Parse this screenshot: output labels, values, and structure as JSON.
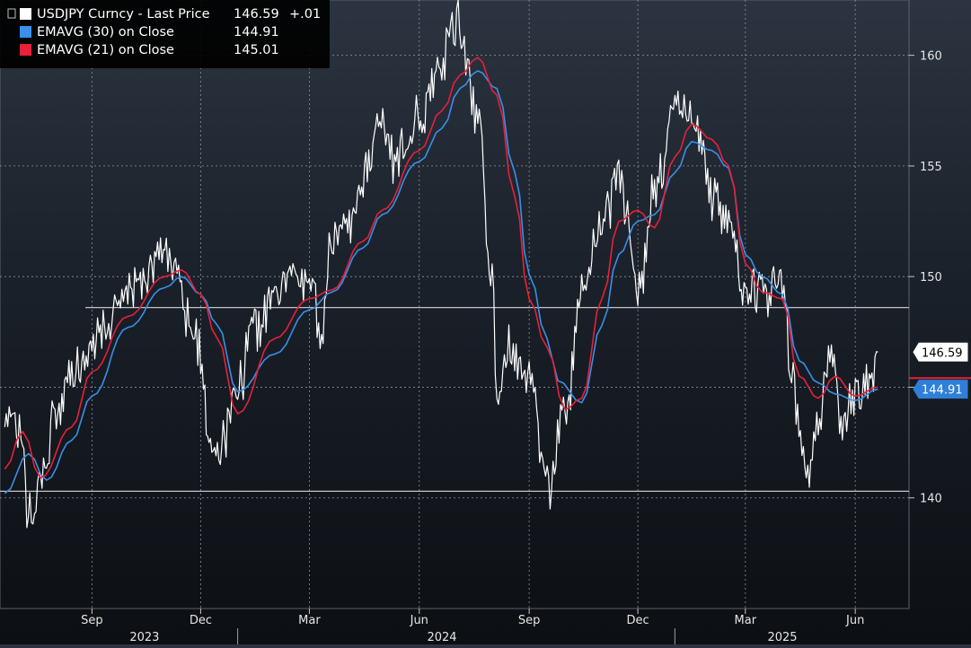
{
  "legend": {
    "items": [
      {
        "label": "USDJPY Curncy - Last Price",
        "value": "146.59",
        "change": "+.01",
        "color": "#ffffff"
      },
      {
        "label": "EMAVG (30)  on Close",
        "value": "144.91",
        "change": "",
        "color": "#3a8fe8"
      },
      {
        "label": "EMAVG (21)  on Close",
        "value": "145.01",
        "change": "",
        "color": "#e8203a"
      }
    ]
  },
  "colors": {
    "price": "#ffffff",
    "ema30": "#3a8fe8",
    "ema21": "#e8203a",
    "grid": "#8a949e",
    "hline": "#d8d8d8"
  },
  "chart_data": {
    "type": "line",
    "title": "",
    "xlabel": "",
    "ylabel": "",
    "ylim": [
      135,
      162.5
    ],
    "y_ticks": [
      140,
      145,
      150,
      155,
      160
    ],
    "y_tick_labels": [
      "140",
      "",
      "150",
      "155",
      "160"
    ],
    "x_ticks": [
      "2023-09-01",
      "2023-12-01",
      "2024-03-01",
      "2024-06-01",
      "2024-09-01",
      "2024-12-01",
      "2025-03-01",
      "2025-06-01"
    ],
    "x_tick_labels": [
      "Sep",
      "Dec",
      "Mar",
      "Jun",
      "Sep",
      "Dec",
      "Mar",
      "Jun"
    ],
    "year_labels": [
      {
        "label": "2023",
        "x": "2023-10-15"
      },
      {
        "label": "2024",
        "x": "2024-06-20"
      },
      {
        "label": "2025",
        "x": "2025-04-01"
      }
    ],
    "year_separators": [
      "2024-01-01",
      "2025-01-01"
    ],
    "horizontal_lines": [
      148.6,
      140.3
    ],
    "last_labels": [
      {
        "text": "146.59",
        "value": 146.59,
        "style": "white"
      },
      {
        "text": "144.91",
        "value": 144.91,
        "style": "blue"
      }
    ],
    "grid": true,
    "series": [
      {
        "name": "USDJPY Curncy - Last Price",
        "x": [
          "2023-06-20",
          "2023-07-01",
          "2023-07-11",
          "2023-07-20",
          "2023-08-01",
          "2023-08-15",
          "2023-09-01",
          "2023-09-15",
          "2023-10-01",
          "2023-10-15",
          "2023-11-01",
          "2023-11-10",
          "2023-11-20",
          "2023-12-01",
          "2023-12-08",
          "2023-12-15",
          "2024-01-01",
          "2024-01-15",
          "2024-02-01",
          "2024-02-15",
          "2024-03-01",
          "2024-03-10",
          "2024-03-20",
          "2024-04-01",
          "2024-04-15",
          "2024-04-29",
          "2024-05-10",
          "2024-06-01",
          "2024-06-15",
          "2024-07-01",
          "2024-07-10",
          "2024-07-20",
          "2024-08-01",
          "2024-08-05",
          "2024-08-15",
          "2024-09-01",
          "2024-09-16",
          "2024-10-01",
          "2024-10-15",
          "2024-11-01",
          "2024-11-15",
          "2024-12-01",
          "2024-12-15",
          "2025-01-01",
          "2025-01-10",
          "2025-01-20",
          "2025-02-01",
          "2025-02-15",
          "2025-03-01",
          "2025-03-15",
          "2025-04-01",
          "2025-04-10",
          "2025-04-21",
          "2025-05-01",
          "2025-05-12",
          "2025-05-20",
          "2025-06-01",
          "2025-06-15",
          "2025-06-20"
        ],
        "y": [
          144.5,
          143.2,
          139.0,
          141.0,
          143.6,
          145.5,
          146.8,
          147.9,
          149.5,
          150.3,
          151.2,
          150.5,
          147.8,
          146.5,
          142.5,
          142.0,
          144.8,
          147.8,
          149.0,
          150.1,
          149.9,
          147.5,
          151.5,
          151.7,
          154.5,
          156.5,
          155.2,
          157.0,
          159.2,
          161.5,
          160.0,
          157.0,
          150.0,
          144.0,
          146.8,
          145.0,
          140.5,
          144.0,
          149.5,
          152.5,
          154.4,
          149.5,
          153.7,
          157.3,
          157.8,
          156.3,
          153.7,
          152.0,
          149.7,
          149.2,
          150.0,
          144.9,
          141.5,
          143.5,
          146.5,
          143.2,
          144.5,
          144.8,
          146.59
        ]
      },
      {
        "name": "EMAVG (30) on Close",
        "x": [
          "2023-06-20",
          "2023-07-10",
          "2023-07-25",
          "2023-08-15",
          "2023-09-01",
          "2023-10-01",
          "2023-11-01",
          "2023-11-15",
          "2023-12-01",
          "2023-12-15",
          "2024-01-01",
          "2024-02-01",
          "2024-03-01",
          "2024-03-20",
          "2024-04-15",
          "2024-05-01",
          "2024-06-01",
          "2024-06-20",
          "2024-07-05",
          "2024-07-20",
          "2024-08-05",
          "2024-08-20",
          "2024-09-01",
          "2024-09-16",
          "2024-09-25",
          "2024-10-15",
          "2024-11-01",
          "2024-11-15",
          "2024-12-01",
          "2024-12-15",
          "2025-01-01",
          "2025-01-15",
          "2025-02-01",
          "2025-02-15",
          "2025-03-01",
          "2025-03-15",
          "2025-04-01",
          "2025-04-15",
          "2025-05-01",
          "2025-05-15",
          "2025-06-01",
          "2025-06-20"
        ],
        "y": [
          140.2,
          142.0,
          140.8,
          142.6,
          144.6,
          147.7,
          149.5,
          150.0,
          149.2,
          147.8,
          144.8,
          146.5,
          148.5,
          149.3,
          151.3,
          152.8,
          155.2,
          156.7,
          158.5,
          159.3,
          158.5,
          154.7,
          150.1,
          147.2,
          145.3,
          144.3,
          147.8,
          151.0,
          152.5,
          152.8,
          154.7,
          156.1,
          155.7,
          154.9,
          151.0,
          150.0,
          149.2,
          146.2,
          145.2,
          144.7,
          144.4,
          144.91
        ]
      },
      {
        "name": "EMAVG (21) on Close",
        "x": [
          "2023-06-20",
          "2023-07-05",
          "2023-07-20",
          "2023-08-15",
          "2023-09-01",
          "2023-10-01",
          "2023-11-01",
          "2023-11-15",
          "2023-12-01",
          "2023-12-15",
          "2024-01-01",
          "2024-02-01",
          "2024-03-01",
          "2024-03-20",
          "2024-04-15",
          "2024-05-01",
          "2024-06-01",
          "2024-06-20",
          "2024-07-05",
          "2024-07-20",
          "2024-08-05",
          "2024-08-20",
          "2024-09-01",
          "2024-09-16",
          "2024-10-01",
          "2024-10-15",
          "2024-11-01",
          "2024-11-15",
          "2024-12-01",
          "2024-12-15",
          "2025-01-01",
          "2025-01-15",
          "2025-02-01",
          "2025-02-15",
          "2025-03-01",
          "2025-03-15",
          "2025-04-01",
          "2025-04-15",
          "2025-05-01",
          "2025-05-15",
          "2025-06-01",
          "2025-06-20"
        ],
        "y": [
          141.3,
          143.0,
          140.9,
          143.2,
          145.7,
          148.2,
          150.0,
          150.3,
          149.2,
          147.2,
          143.8,
          147.2,
          149.0,
          149.4,
          151.6,
          153.0,
          155.7,
          157.5,
          159.1,
          159.9,
          158.2,
          153.6,
          149.0,
          146.8,
          144.0,
          144.5,
          149.0,
          152.5,
          153.0,
          152.2,
          155.4,
          156.9,
          156.2,
          155.0,
          150.6,
          149.3,
          149.0,
          145.5,
          144.5,
          145.5,
          144.6,
          145.01
        ]
      }
    ]
  }
}
